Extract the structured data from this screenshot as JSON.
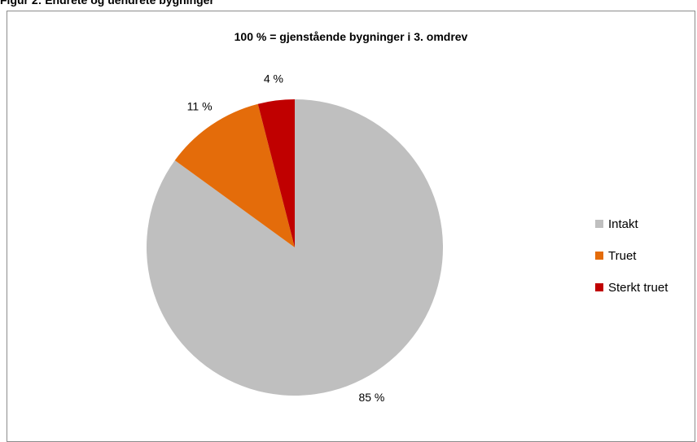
{
  "figure": {
    "title": "Figur 2: Endrete og uendrete bygninger"
  },
  "chart_data": {
    "type": "pie",
    "title": "100 % = gjenstående bygninger i 3. omdrev",
    "legend_placement": "right",
    "slices": [
      {
        "name": "Intakt",
        "value": 85,
        "label": "85 %",
        "color": "#bfbfbf"
      },
      {
        "name": "Truet",
        "value": 11,
        "label": "11 %",
        "color": "#e46c0a"
      },
      {
        "name": "Sterkt truet",
        "value": 4,
        "label": "4 %",
        "color": "#c00000"
      }
    ]
  }
}
